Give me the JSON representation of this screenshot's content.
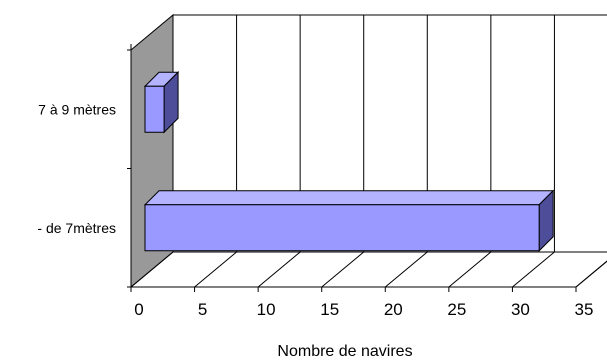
{
  "chart_data": {
    "type": "bar",
    "orientation": "horizontal",
    "style": "3d",
    "categories": [
      "- de 7mètres",
      "7 à 9 mètres"
    ],
    "values": [
      31,
      1.5
    ],
    "xlabel": "Nombre de  navires",
    "ylabel": "",
    "xlim": [
      0,
      35
    ],
    "xticks": [
      "0",
      "5",
      "10",
      "15",
      "20",
      "25",
      "30",
      "35"
    ],
    "grid": true,
    "legend": "none",
    "colors": {
      "bar_front": "#9999ff",
      "bar_top": "#b3b3ff",
      "bar_side": "#4d4d99",
      "side_wall": "#999999",
      "grid": "#000000"
    }
  }
}
